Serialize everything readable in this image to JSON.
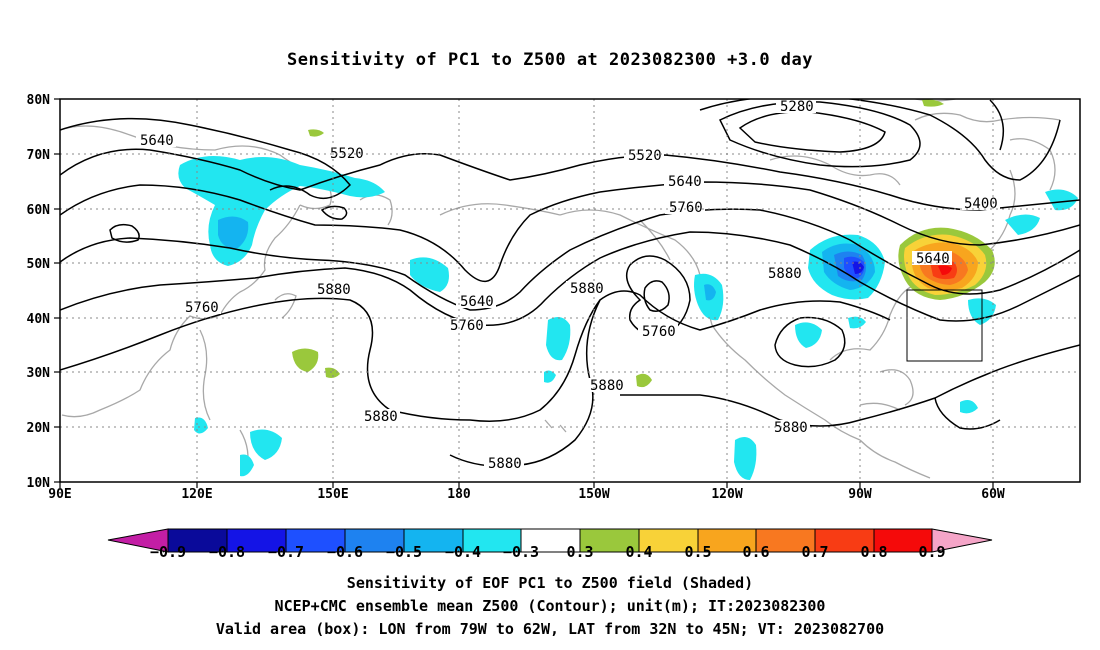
{
  "title": "Sensitivity of PC1 to Z500 at 2023082300 +3.0 day",
  "map": {
    "lat_labels": [
      "80N",
      "70N",
      "60N",
      "50N",
      "40N",
      "30N",
      "20N",
      "10N"
    ],
    "lon_labels": [
      "90E",
      "120E",
      "150E",
      "180",
      "150W",
      "120W",
      "90W",
      "60W"
    ],
    "valid_box": {
      "lon_from": "79W",
      "lon_to": "62W",
      "lat_from": "32N",
      "lat_to": "45N"
    }
  },
  "contour_labels": [
    "5280",
    "5400",
    "5520",
    "5520",
    "5640",
    "5640",
    "5640",
    "5640",
    "5760",
    "5760",
    "5760",
    "5760",
    "5880",
    "5880",
    "5880",
    "5880",
    "5880",
    "5880",
    "5880"
  ],
  "colorbar": {
    "labels": [
      "−0.9",
      "−0.8",
      "−0.7",
      "−0.6",
      "−0.5",
      "−0.4",
      "−0.3",
      "0.3",
      "0.4",
      "0.5",
      "0.6",
      "0.7",
      "0.8",
      "0.9"
    ],
    "colors": [
      "#0a0a9a",
      "#1414e6",
      "#1e50ff",
      "#1e82f0",
      "#14b4f0",
      "#22e6f0",
      "#ffffff",
      "#9ac83c",
      "#f8d238",
      "#f8a51e",
      "#f87820",
      "#f83c14",
      "#f50a0a"
    ],
    "low_end_color": "#c31ea5",
    "high_end_color": "#f5a5c8"
  },
  "captions": {
    "line1": "Sensitivity of EOF PC1 to Z500 field (Shaded)",
    "line2": "NCEP+CMC ensemble mean Z500 (Contour); unit(m); IT:2023082300",
    "line3": "Valid area (box): LON from 79W to 62W, LAT from 32N to 45N; VT: 2023082700"
  }
}
